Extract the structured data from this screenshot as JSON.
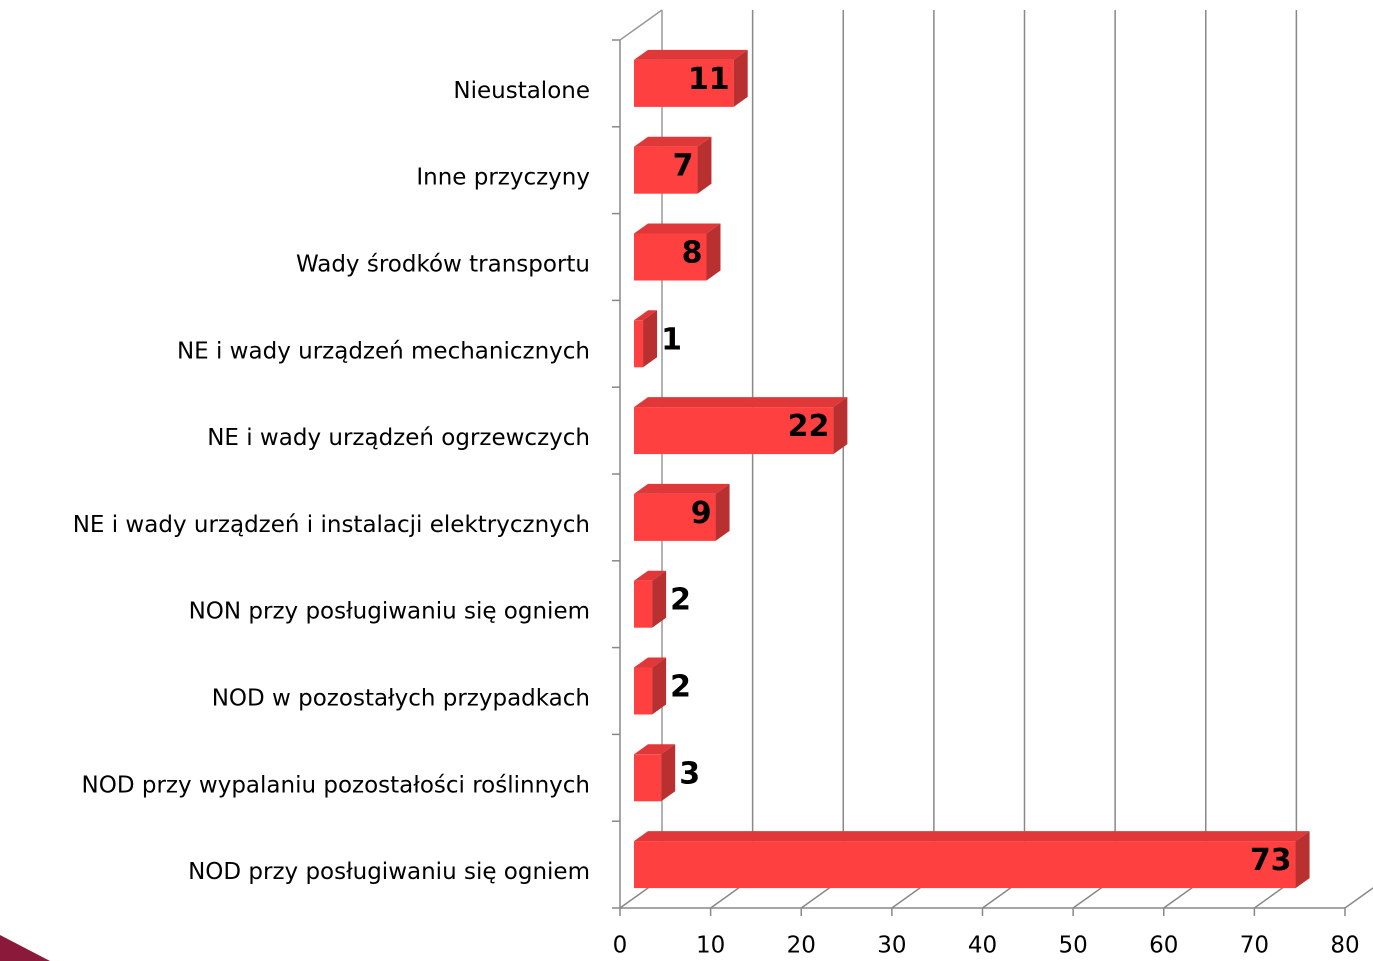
{
  "chart_data": {
    "type": "bar3d_horizontal",
    "categories": [
      "Nieustalone",
      "Inne przyczyny",
      "Wady środków transportu",
      "NE i wady urządzeń mechanicznych",
      "NE i wady urządzeń ogrzewczych",
      "NE i wady urządzeń i instalacji elektrycznych",
      "NON przy posługiwaniu się ogniem ",
      "NOD w pozostałych przypadkach",
      "NOD przy wypalaniu pozostałości roślinnych",
      "NOD przy posługiwaniu się ogniem"
    ],
    "values": [
      11,
      7,
      8,
      1,
      22,
      9,
      2,
      2,
      3,
      73
    ],
    "color": "#ff4040",
    "xlim": [
      0,
      80
    ],
    "xticks": [
      0,
      10,
      20,
      30,
      40,
      50,
      60,
      70,
      80
    ],
    "grid": true
  }
}
